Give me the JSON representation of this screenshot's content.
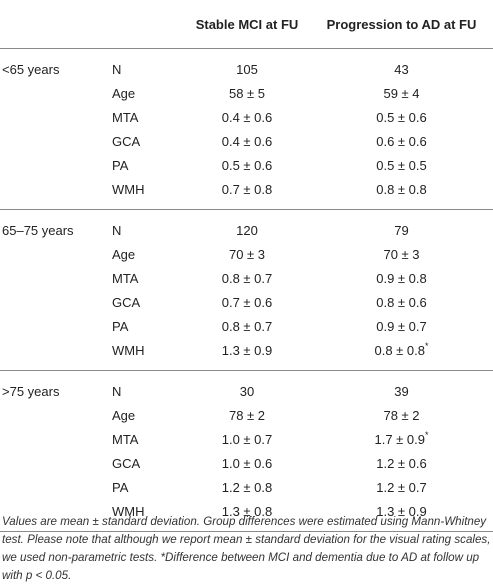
{
  "header": {
    "col_group": "",
    "col_variable": "",
    "col_stable": "Stable MCI at FU",
    "col_progression": "Progression to AD at FU"
  },
  "groups": [
    {
      "label": "<65 years",
      "rows": [
        {
          "var": "N",
          "stable": "105",
          "prog": "43",
          "star": ""
        },
        {
          "var": "Age",
          "stable": "58 ± 5",
          "prog": "59 ± 4",
          "star": ""
        },
        {
          "var": "MTA",
          "stable": "0.4 ± 0.6",
          "prog": "0.5 ± 0.6",
          "star": ""
        },
        {
          "var": "GCA",
          "stable": "0.4 ± 0.6",
          "prog": "0.6 ± 0.6",
          "star": ""
        },
        {
          "var": "PA",
          "stable": "0.5 ± 0.6",
          "prog": "0.5 ± 0.5",
          "star": ""
        },
        {
          "var": "WMH",
          "stable": "0.7 ± 0.8",
          "prog": "0.8 ± 0.8",
          "star": ""
        }
      ]
    },
    {
      "label": "65–75 years",
      "rows": [
        {
          "var": "N",
          "stable": "120",
          "prog": "79",
          "star": ""
        },
        {
          "var": "Age",
          "stable": "70 ± 3",
          "prog": "70 ± 3",
          "star": ""
        },
        {
          "var": "MTA",
          "stable": "0.8 ± 0.7",
          "prog": "0.9 ± 0.8",
          "star": ""
        },
        {
          "var": "GCA",
          "stable": "0.7 ± 0.6",
          "prog": "0.8 ± 0.6",
          "star": ""
        },
        {
          "var": "PA",
          "stable": "0.8 ± 0.7",
          "prog": "0.9 ± 0.7",
          "star": ""
        },
        {
          "var": "WMH",
          "stable": "1.3 ± 0.9",
          "prog": "0.8 ± 0.8",
          "star": "*"
        }
      ]
    },
    {
      "label": ">75 years",
      "rows": [
        {
          "var": "N",
          "stable": "30",
          "prog": "39",
          "star": ""
        },
        {
          "var": "Age",
          "stable": "78 ± 2",
          "prog": "78 ± 2",
          "star": ""
        },
        {
          "var": "MTA",
          "stable": "1.0 ± 0.7",
          "prog": "1.7 ± 0.9",
          "star": "*"
        },
        {
          "var": "GCA",
          "stable": "1.0 ± 0.6",
          "prog": "1.2 ± 0.6",
          "star": ""
        },
        {
          "var": "PA",
          "stable": "1.2 ± 0.8",
          "prog": "1.2 ± 0.7",
          "star": ""
        },
        {
          "var": "WMH",
          "stable": "1.3 ± 0.8",
          "prog": "1.3 ± 0.9",
          "star": ""
        }
      ]
    }
  ],
  "footnote": "Values are mean ± standard deviation. Group differences were estimated using Mann-Whitney test. Please note that although we report mean ± standard deviation for the visual rating scales, we used non-parametric tests. *Difference between MCI and dementia due to AD at follow up with p < 0.05."
}
